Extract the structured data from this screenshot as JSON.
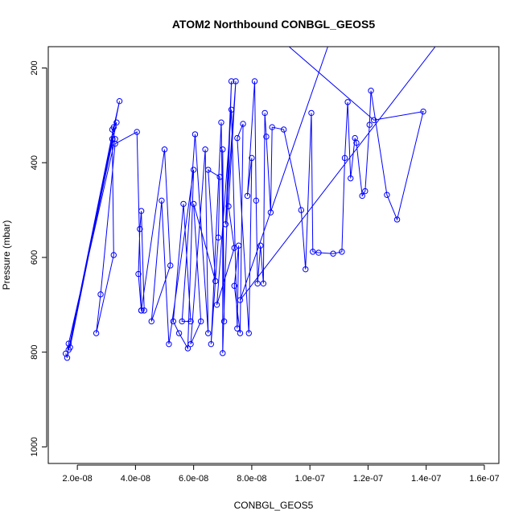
{
  "chart_data": {
    "type": "line",
    "title": "ATOM2 Northbound CONBGL_GEOS5",
    "xlabel": "CONBGL_GEOS5",
    "ylabel": "Pressure (mbar)",
    "xlim": [
      1e-08,
      1.65e-07
    ],
    "ylim": [
      1035,
      155
    ],
    "y_inverted": true,
    "x_ticks": [
      2e-08,
      4e-08,
      6e-08,
      8e-08,
      1e-07,
      1.2e-07,
      1.4e-07,
      1.6e-07
    ],
    "x_tick_labels": [
      "2.0e-08",
      "4.0e-08",
      "6.0e-08",
      "8.0e-08",
      "1.0e-07",
      "1.2e-07",
      "1.4e-07",
      "1.6e-07"
    ],
    "y_ticks": [
      200,
      400,
      600,
      800,
      1000
    ],
    "y_tick_labels": [
      "200",
      "400",
      "600",
      "800",
      "1000"
    ],
    "series_color": "#0000ff",
    "marker": "open-circle",
    "series": [
      {
        "points": [
          [
            1.6e-08,
            803
          ],
          [
            1.65e-08,
            812
          ],
          [
            1.7e-08,
            782
          ],
          [
            3.3e-08,
            350
          ],
          [
            3.2e-08,
            330
          ],
          [
            3.35e-08,
            315
          ],
          [
            1.7e-08,
            795
          ],
          [
            3.25e-08,
            325
          ],
          [
            3.45e-08,
            270
          ],
          [
            1.75e-08,
            790
          ],
          [
            3.2e-08,
            350
          ],
          [
            3.25e-08,
            595
          ],
          [
            2.65e-08,
            760
          ],
          [
            2.8e-08,
            678
          ],
          [
            3.3e-08,
            360
          ],
          [
            4.05e-08,
            335
          ],
          [
            4.2e-08,
            712
          ],
          [
            4.3e-08,
            712
          ],
          [
            4.2e-08,
            502
          ],
          [
            4.15e-08,
            540
          ],
          [
            4.1e-08,
            635
          ],
          [
            4.2e-08,
            712
          ],
          [
            5e-08,
            372
          ],
          [
            5.2e-08,
            617
          ],
          [
            4.55e-08,
            735
          ],
          [
            4.9e-08,
            480
          ],
          [
            5.15e-08,
            783
          ],
          [
            6e-08,
            415
          ],
          [
            5.8e-08,
            792
          ],
          [
            5.5e-08,
            760
          ],
          [
            5.3e-08,
            735
          ],
          [
            5.65e-08,
            487
          ],
          [
            5.9e-08,
            735
          ],
          [
            5.6e-08,
            735
          ],
          [
            6.05e-08,
            340
          ],
          [
            6.5e-08,
            760
          ],
          [
            6.4e-08,
            372
          ],
          [
            5.9e-08,
            783
          ],
          [
            6.25e-08,
            735
          ],
          [
            6e-08,
            487
          ],
          [
            6.75e-08,
            650
          ],
          [
            6.5e-08,
            415
          ],
          [
            6.9e-08,
            430
          ],
          [
            6.85e-08,
            558
          ],
          [
            6.6e-08,
            783
          ],
          [
            6.95e-08,
            315
          ],
          [
            7.05e-08,
            735
          ],
          [
            7e-08,
            372
          ],
          [
            7e-08,
            802
          ],
          [
            7.3e-08,
            228
          ],
          [
            7.1e-08,
            530
          ],
          [
            7.45e-08,
            228
          ],
          [
            7.2e-08,
            492
          ],
          [
            7.4e-08,
            580
          ],
          [
            6.8e-08,
            700
          ],
          [
            7.3e-08,
            288
          ],
          [
            7.5e-08,
            750
          ],
          [
            7.55e-08,
            575
          ],
          [
            7.4e-08,
            660
          ],
          [
            7.6e-08,
            760
          ],
          [
            7.7e-08,
            318
          ],
          [
            7.5e-08,
            348
          ],
          [
            7.9e-08,
            760
          ],
          [
            8e-08,
            390
          ],
          [
            7.85e-08,
            470
          ],
          [
            8.1e-08,
            228
          ],
          [
            8.15e-08,
            480
          ],
          [
            8.2e-08,
            655
          ],
          [
            8.3e-08,
            575
          ],
          [
            8.4e-08,
            655
          ],
          [
            8.45e-08,
            295
          ],
          [
            8.5e-08,
            345
          ],
          [
            8.65e-08,
            505
          ],
          [
            8.7e-08,
            325
          ],
          [
            9.1e-08,
            330
          ],
          [
            9.7e-08,
            500
          ],
          [
            9.85e-08,
            625
          ],
          [
            1.005e-07,
            295
          ],
          [
            1.01e-07,
            588
          ],
          [
            1.03e-07,
            590
          ],
          [
            1.08e-07,
            592
          ],
          [
            1.11e-07,
            588
          ],
          [
            1.12e-07,
            390
          ],
          [
            1.13e-07,
            272
          ],
          [
            1.14e-07,
            433
          ],
          [
            1.155e-07,
            348
          ],
          [
            1.16e-07,
            358
          ],
          [
            1.18e-07,
            470
          ],
          [
            1.19e-07,
            460
          ],
          [
            1.205e-07,
            320
          ],
          [
            1.21e-07,
            248
          ],
          [
            1.265e-07,
            468
          ],
          [
            1.3e-07,
            520
          ],
          [
            1.39e-07,
            292
          ],
          [
            1.22e-07,
            310
          ],
          [
            9e-08,
            140
          ],
          [
            1.45e-07,
            140
          ],
          [
            7.6e-08,
            690
          ],
          [
            1.07e-07,
            140
          ],
          [
            8.7e-08,
            140
          ]
        ]
      }
    ]
  }
}
